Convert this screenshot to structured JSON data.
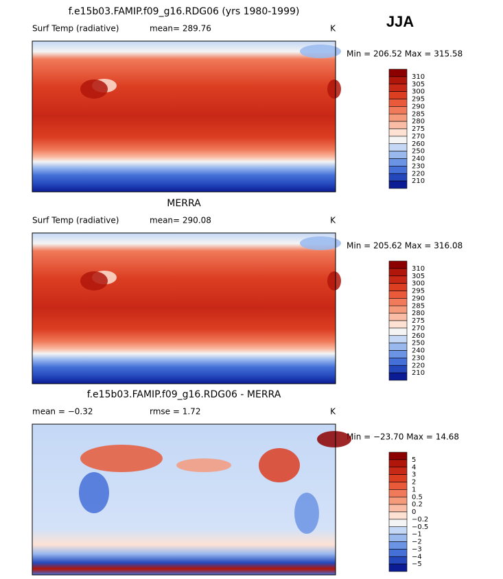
{
  "header": {
    "season": "JJA"
  },
  "panels": [
    {
      "title": "f.e15b03.FAMIP.f09_g16.RDG06 (yrs 1980-1999)",
      "variable": "Surf Temp (radiative)",
      "stats": [
        "mean= 289.76"
      ],
      "units": "K",
      "range": "Min = 206.52 Max = 315.58",
      "map": "climatology",
      "colorbar": {
        "labels": [
          310,
          305,
          300,
          295,
          290,
          285,
          280,
          275,
          270,
          260,
          250,
          240,
          230,
          220,
          210
        ],
        "colors": [
          "#8c0000",
          "#b0160a",
          "#c82816",
          "#dc3e22",
          "#e85a3a",
          "#f07a5a",
          "#f69a7c",
          "#fabca4",
          "#fde2d4",
          "#f4f4f4",
          "#c4d8f6",
          "#98b8ee",
          "#6c94e4",
          "#4470d8",
          "#2448bc",
          "#0c1c94"
        ]
      }
    },
    {
      "title": "MERRA",
      "variable": "Surf Temp (radiative)",
      "stats": [
        "mean= 290.08"
      ],
      "units": "K",
      "range": "Min = 205.62 Max = 316.08",
      "map": "climatology",
      "colorbar": {
        "labels": [
          310,
          305,
          300,
          295,
          290,
          285,
          280,
          275,
          270,
          260,
          250,
          240,
          230,
          220,
          210
        ],
        "colors": [
          "#8c0000",
          "#b0160a",
          "#c82816",
          "#dc3e22",
          "#e85a3a",
          "#f07a5a",
          "#f69a7c",
          "#fabca4",
          "#fde2d4",
          "#f4f4f4",
          "#c4d8f6",
          "#98b8ee",
          "#6c94e4",
          "#4470d8",
          "#2448bc",
          "#0c1c94"
        ]
      }
    },
    {
      "title": "f.e15b03.FAMIP.f09_g16.RDG06 - MERRA",
      "stats": [
        "mean =  −0.32",
        "rmse =   1.72"
      ],
      "units": "K",
      "range": "Min = −23.70 Max =  14.68",
      "map": "difference",
      "colorbar": {
        "labels": [
          "5",
          "4",
          "3",
          "2",
          "1",
          "0.5",
          "0.2",
          "0",
          "−0.2",
          "−0.5",
          "−1",
          "−2",
          "−3",
          "−4",
          "−5"
        ],
        "colors": [
          "#8c0000",
          "#b0160a",
          "#c82816",
          "#dc3e22",
          "#e85a3a",
          "#f07a5a",
          "#f69a7c",
          "#fabca4",
          "#fde2d4",
          "#f4f4f4",
          "#c4d8f6",
          "#98b8ee",
          "#6c94e4",
          "#4470d8",
          "#2448bc",
          "#0c1c94"
        ]
      }
    }
  ]
}
